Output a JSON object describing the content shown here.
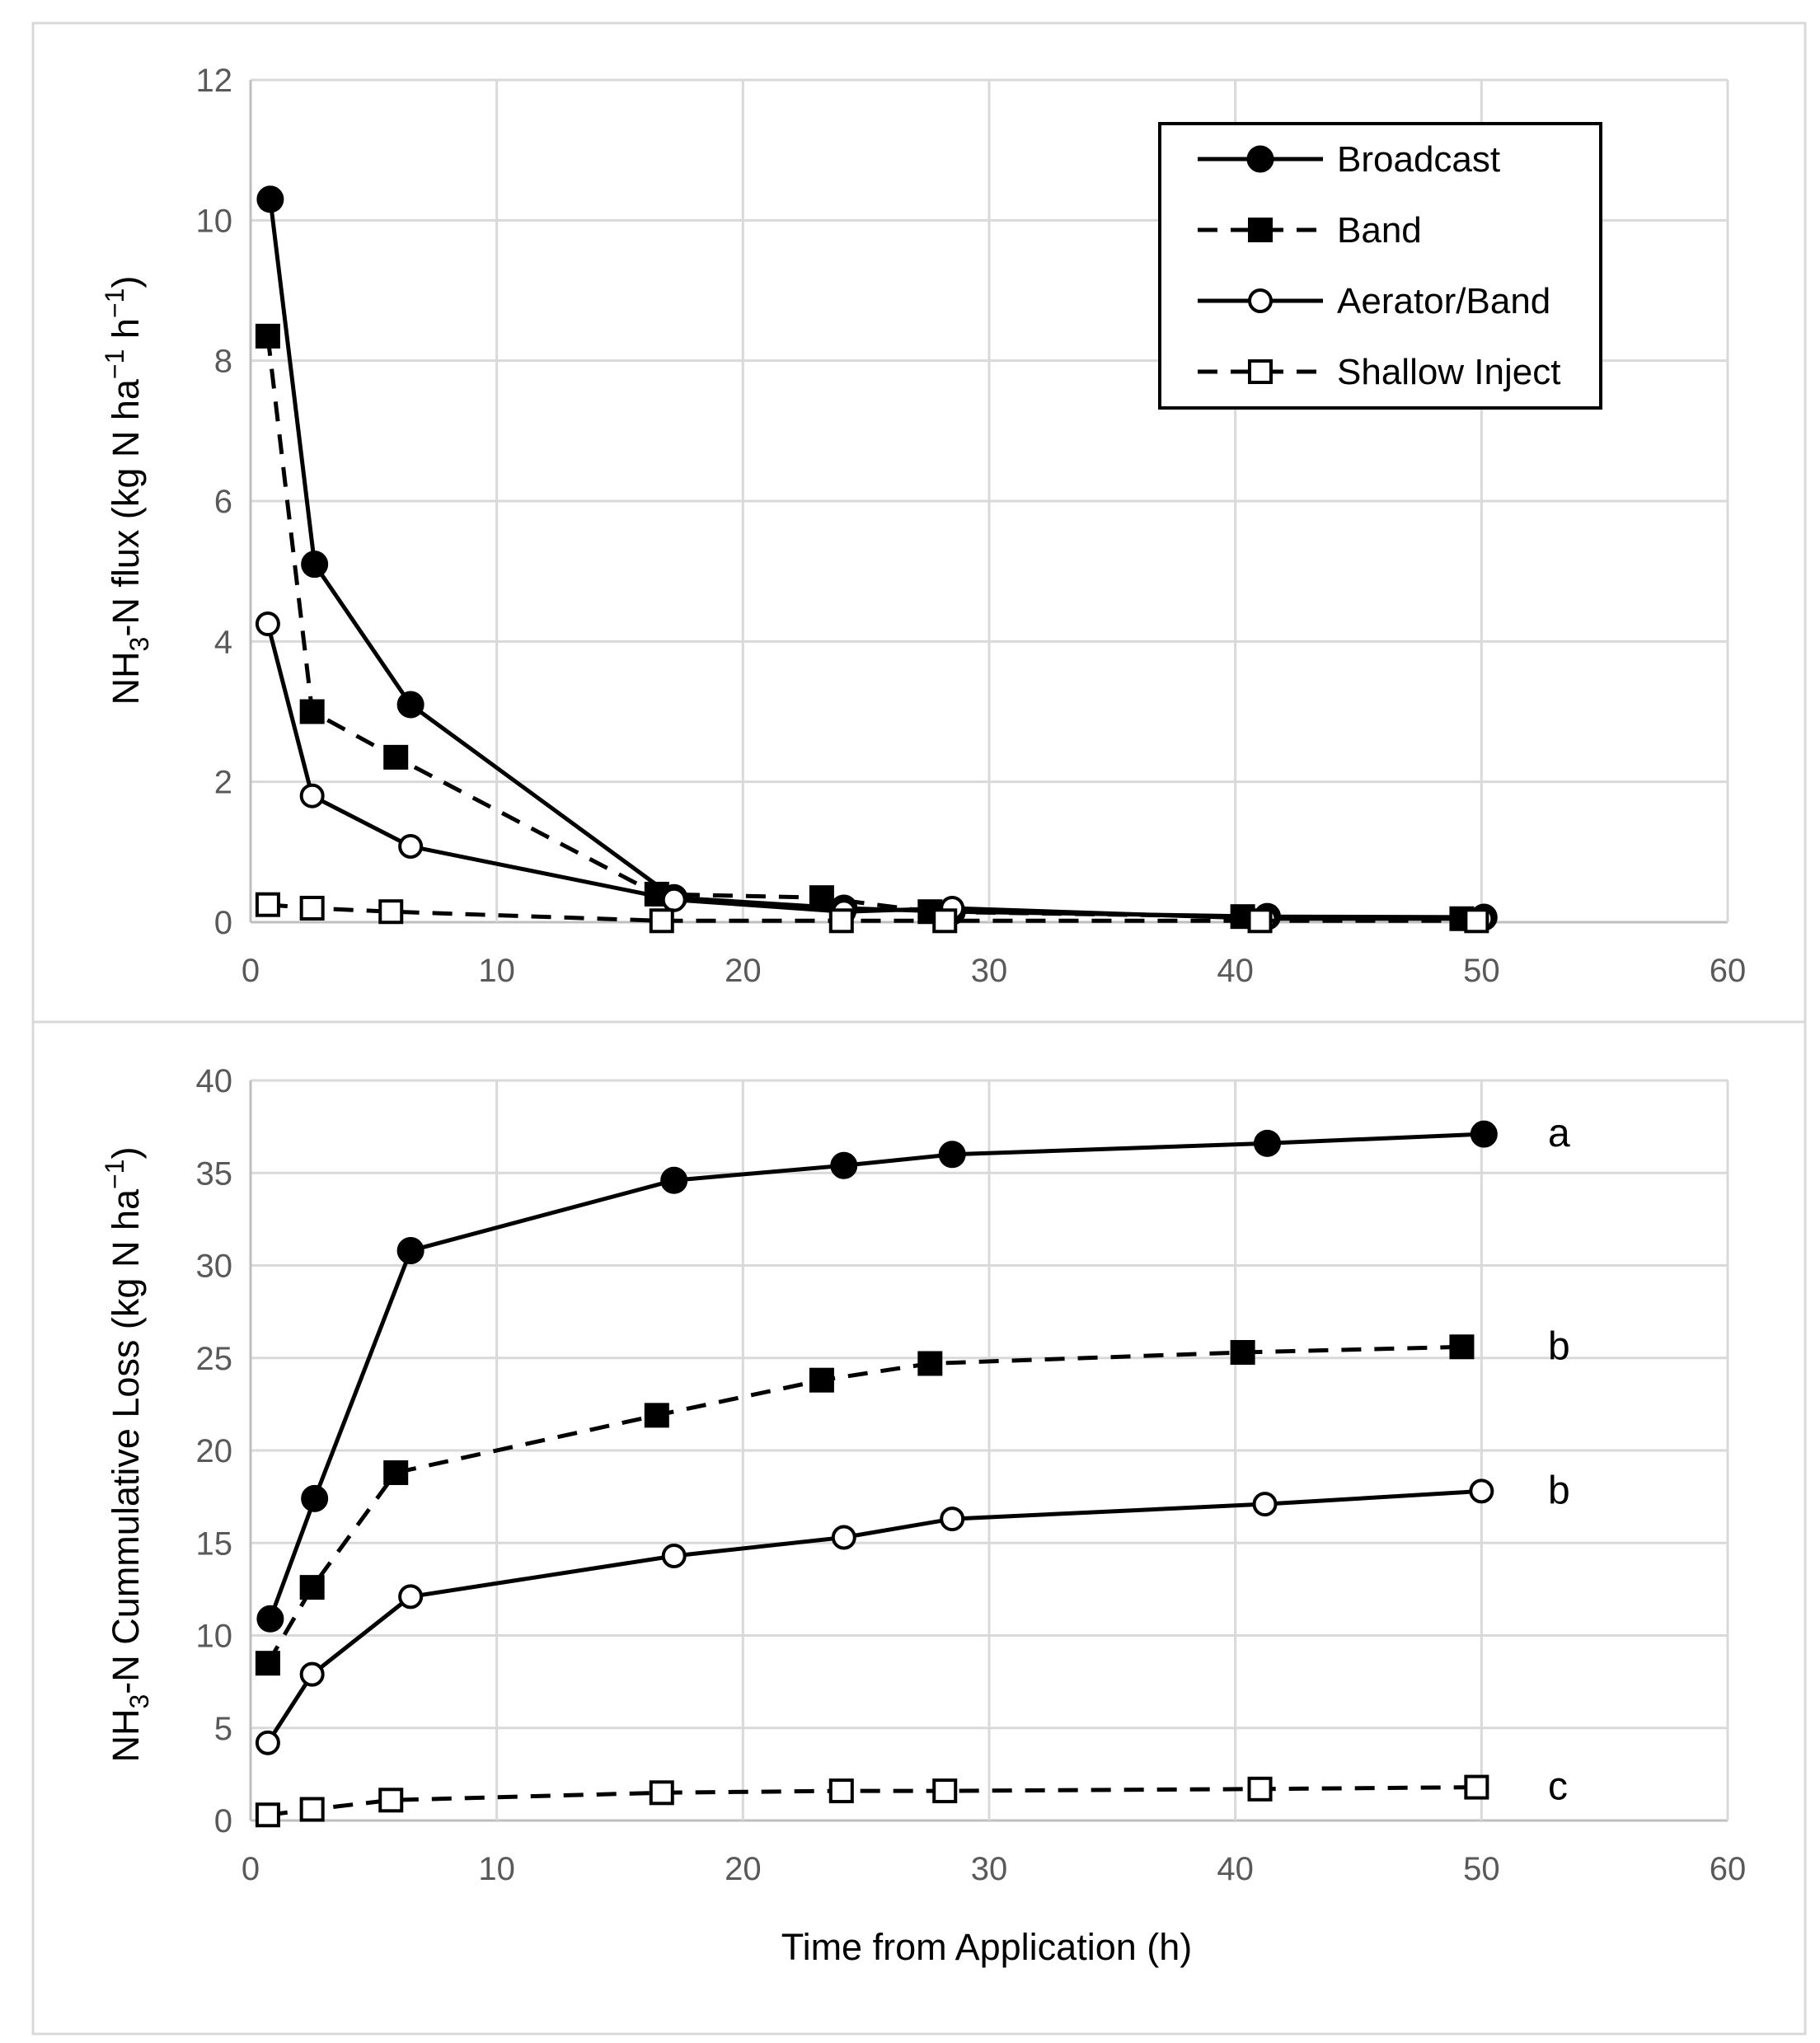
{
  "chart_data": [
    {
      "type": "line",
      "title": "",
      "xlabel": "",
      "ylabel": "NH3-N flux (kg N ha−1 h−1)",
      "ylabel_parts": {
        "a": "NH",
        "sub": "3",
        "b": "-N flux (kg N ha",
        "sup1": "−1",
        "c": " h",
        "sup2": "−1",
        "d": ")"
      },
      "xlim": [
        0,
        60
      ],
      "ylim": [
        0,
        12
      ],
      "xticks": [
        0,
        10,
        20,
        30,
        40,
        50,
        60
      ],
      "yticks": [
        0,
        2,
        4,
        6,
        8,
        10,
        12
      ],
      "grid": true,
      "legend": "top-right",
      "series": [
        {
          "name": "Broadcast",
          "marker": "filled-circle",
          "line": "solid",
          "x": [
            0.8,
            2.6,
            6.5,
            17.2,
            24.1,
            28.5,
            41.3,
            50.1
          ],
          "y": [
            10.3,
            5.1,
            3.1,
            0.35,
            0.2,
            0.15,
            0.08,
            0.07
          ]
        },
        {
          "name": "Band",
          "marker": "filled-square",
          "line": "dashed",
          "x": [
            0.7,
            2.5,
            5.9,
            16.5,
            23.2,
            27.6,
            40.3,
            49.2
          ],
          "y": [
            8.35,
            3.0,
            2.35,
            0.4,
            0.35,
            0.15,
            0.08,
            0.05
          ]
        },
        {
          "name": "Aerator/Band",
          "marker": "open-circle",
          "line": "solid",
          "x": [
            0.7,
            2.5,
            6.5,
            17.2,
            24.1,
            28.5,
            41.2,
            50.0
          ],
          "y": [
            4.25,
            1.8,
            1.08,
            0.32,
            0.15,
            0.2,
            0.05,
            0.05
          ]
        },
        {
          "name": "Shallow Inject",
          "marker": "open-square",
          "line": "dashed",
          "x": [
            0.7,
            2.5,
            5.7,
            16.7,
            24.0,
            28.2,
            41.0,
            49.8
          ],
          "y": [
            0.25,
            0.2,
            0.15,
            0.02,
            0.02,
            0.02,
            0.02,
            0.02
          ]
        }
      ]
    },
    {
      "type": "line",
      "title": "",
      "xlabel": "Time from Application (h)",
      "ylabel": "NH3-N Cummulative Loss (kg N ha−1)",
      "ylabel_parts": {
        "a": "NH",
        "sub": "3",
        "b": "-N Cummulative Loss (kg N ha",
        "sup1": "−1",
        "c": ")"
      },
      "xlim": [
        0,
        60
      ],
      "ylim": [
        0,
        40
      ],
      "xticks": [
        0,
        10,
        20,
        30,
        40,
        50,
        60
      ],
      "yticks": [
        0,
        5,
        10,
        15,
        20,
        25,
        30,
        35,
        40
      ],
      "grid": true,
      "series": [
        {
          "name": "Broadcast",
          "marker": "filled-circle",
          "line": "solid",
          "letter": "a",
          "x": [
            0.8,
            2.6,
            6.5,
            17.2,
            24.1,
            28.5,
            41.3,
            50.1
          ],
          "y": [
            10.9,
            17.4,
            30.8,
            34.6,
            35.4,
            36.0,
            36.6,
            37.1
          ]
        },
        {
          "name": "Band",
          "marker": "filled-square",
          "line": "dashed",
          "letter": "b",
          "x": [
            0.7,
            2.5,
            5.9,
            16.5,
            23.2,
            27.6,
            40.3,
            49.2
          ],
          "y": [
            8.5,
            12.6,
            18.8,
            21.9,
            23.8,
            24.7,
            25.3,
            25.6
          ]
        },
        {
          "name": "Aerator/Band",
          "marker": "open-circle",
          "line": "solid",
          "letter": "b",
          "x": [
            0.7,
            2.5,
            6.5,
            17.2,
            24.1,
            28.5,
            41.2,
            50.0
          ],
          "y": [
            4.2,
            7.9,
            12.1,
            14.3,
            15.3,
            16.3,
            17.1,
            17.8
          ]
        },
        {
          "name": "Shallow Inject",
          "marker": "open-square",
          "line": "dashed",
          "letter": "c",
          "x": [
            0.7,
            2.5,
            5.7,
            16.7,
            24.0,
            28.2,
            41.0,
            49.8
          ],
          "y": [
            0.3,
            0.6,
            1.1,
            1.5,
            1.6,
            1.6,
            1.7,
            1.8
          ]
        }
      ]
    }
  ]
}
